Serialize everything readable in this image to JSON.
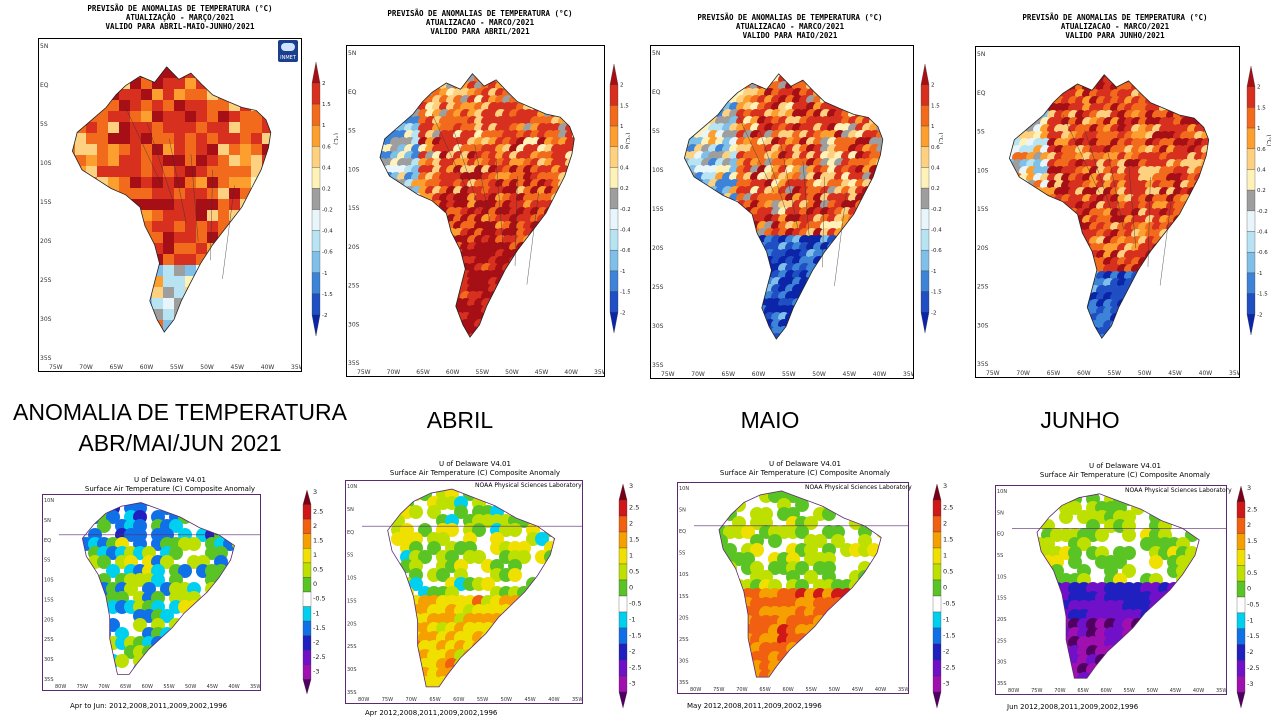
{
  "inmet_maps": [
    {
      "title_lines": [
        "PREVISÃO DE ANOMALIAS DE TEMPERATURA (°C)",
        "ATUALIZAÇÃO - MARÇO/2021",
        "VALIDO PARA ABRIL-MAIO-JUNHO/2021"
      ],
      "logo": "INMET",
      "pattern": "hot-gridded"
    },
    {
      "title_lines": [
        "PREVISÃO DE ANOMALIAS DE TEMPERATURA (°C)",
        "ATUALIZACAO - MARCO/2021",
        "VALIDO PARA ABRIL/2021"
      ],
      "pattern": "hot"
    },
    {
      "title_lines": [
        "PREVISÃO DE ANOMALIAS DE TEMPERATURA (°C)",
        "ATUALIZACAO - MARCO/2021",
        "VALIDO PARA MAIO/2021"
      ],
      "pattern": "mixed-cold-south"
    },
    {
      "title_lines": [
        "PREVISÃO DE ANOMALIAS DE TEMPERATURA (°C)",
        "ATUALIZACAO - MARCO/2021",
        "VALIDO PARA JUNHO/2021"
      ],
      "pattern": "hot-cold-south"
    }
  ],
  "inmet_lat_labels": [
    "5N",
    "EQ",
    "5S",
    "10S",
    "15S",
    "20S",
    "25S",
    "30S",
    "35S"
  ],
  "inmet_lon_labels": [
    "75W",
    "70W",
    "65W",
    "60W",
    "55W",
    "50W",
    "45W",
    "40W",
    "35W"
  ],
  "inmet_colorbar": {
    "unit": "(°C)",
    "levels": [
      "2",
      "1.5",
      "1",
      "0.6",
      "0.4",
      "0.2",
      "-0.2",
      "-0.4",
      "-0.6",
      "-1",
      "-1.5",
      "-2"
    ],
    "colors": [
      "#a50f15",
      "#d7301f",
      "#f26b1d",
      "#fd9f2f",
      "#fdd17f",
      "#fff2b8",
      "#9e9e9e",
      "#e8f6fb",
      "#b7e3f3",
      "#7fbfe8",
      "#3d83d8",
      "#1f4fc2",
      "#0b24a8"
    ]
  },
  "captions": {
    "combined_line1": "ANOMALIA DE TEMPERATURA",
    "combined_line2": "ABR/MAI/JUN 2021",
    "april": "ABRIL",
    "may": "MAIO",
    "june": "JUNHO"
  },
  "noaa_maps": [
    {
      "title1": "U of Delaware V4.01",
      "title2": "Surface Air Temperature (C) Composite Anomaly",
      "lab": "",
      "footer": "Apr to Jun: 2012,2008,2011,2009,2002,1996",
      "pattern": "neutral"
    },
    {
      "title1": "U of Delaware V4.01",
      "title2": "Surface Air Temperature (C) Composite Anomaly",
      "lab": "NOAA Physical Sciences Laboratory",
      "footer": "Apr  2012,2008,2011,2009,2002,1996",
      "pattern": "warm-south"
    },
    {
      "title1": "U of Delaware V4.01",
      "title2": "Surface Air Temperature (C) Composite Anomaly",
      "lab": "NOAA Physical Sciences Laboratory",
      "footer": "May  2012,2008,2011,2009,2002,1996",
      "pattern": "warm-south-strong"
    },
    {
      "title1": "U of Delaware V4.01",
      "title2": "Surface Air Temperature (C) Composite Anomaly",
      "lab": "NOAA Physical Sciences Laboratory",
      "footer": "Jun  2012,2008,2011,2009,2002,1996",
      "pattern": "cold-south"
    }
  ],
  "noaa_lat_labels": [
    "10N",
    "5N",
    "EQ",
    "5S",
    "10S",
    "15S",
    "20S",
    "25S",
    "30S",
    "35S"
  ],
  "noaa_lon_labels": [
    "80W",
    "75W",
    "70W",
    "65W",
    "60W",
    "55W",
    "50W",
    "45W",
    "40W",
    "35W"
  ],
  "noaa_colorbar": {
    "levels": [
      "3",
      "2.5",
      "2",
      "1.5",
      "1",
      "0.5",
      "0",
      "-0.5",
      "-1",
      "-1.5",
      "-2",
      "-2.5",
      "-3"
    ],
    "colors": [
      "#7a0018",
      "#d01818",
      "#f06010",
      "#f5a000",
      "#f0e000",
      "#bde000",
      "#5bc425",
      "#ffffff",
      "#00d0f0",
      "#1070e8",
      "#2020c0",
      "#7010c8",
      "#a010b0",
      "#500060"
    ]
  }
}
